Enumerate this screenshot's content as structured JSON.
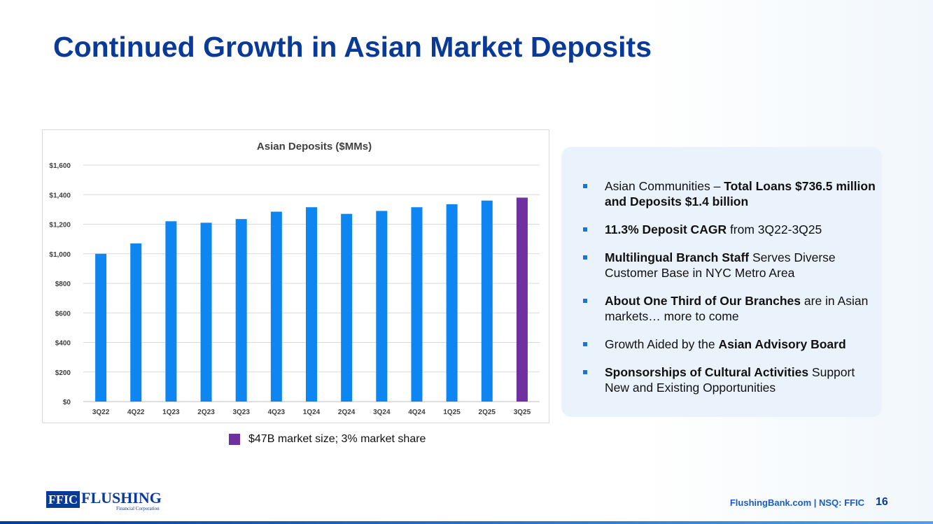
{
  "slide": {
    "title": "Continued Growth in Asian Market Deposits",
    "page_number": "16",
    "footer": "FlushingBank.com  |  NSQ: FFIC"
  },
  "logo": {
    "box_text": "FFIC",
    "name_text": "FLUSHING",
    "sub_text": "Financial Corporation"
  },
  "chart_data": {
    "type": "bar",
    "title": "Asian Deposits ($MMs)",
    "categories": [
      "3Q22",
      "4Q22",
      "1Q23",
      "2Q23",
      "3Q23",
      "4Q23",
      "1Q24",
      "2Q24",
      "3Q24",
      "4Q24",
      "1Q25",
      "2Q25",
      "3Q25"
    ],
    "values": [
      1000,
      1070,
      1220,
      1210,
      1235,
      1285,
      1315,
      1270,
      1290,
      1315,
      1335,
      1360,
      1380
    ],
    "ylim": [
      0,
      1600
    ],
    "yticks": [
      "$0",
      "$200",
      "$400",
      "$600",
      "$800",
      "$1,000",
      "$1,200",
      "$1,400",
      "$1,600"
    ],
    "grid": true,
    "colors": {
      "default": "#0d86f2",
      "highlight": "#7030a0"
    },
    "highlight_index": 12
  },
  "legend": {
    "label": "$47B market size; 3% market share",
    "color": "#7030a0"
  },
  "bullets": [
    [
      {
        "t": "Asian Communities – ",
        "b": false
      },
      {
        "t": "Total Loans $736.5 million and Deposits $1.4 billion",
        "b": true
      }
    ],
    [
      {
        "t": "11.3% Deposit CAGR",
        "b": true
      },
      {
        "t": " from 3Q22-3Q25",
        "b": false
      }
    ],
    [
      {
        "t": "Multilingual Branch Staff",
        "b": true
      },
      {
        "t": " Serves Diverse Customer Base in NYC Metro Area",
        "b": false
      }
    ],
    [
      {
        "t": "About One Third of Our Branches",
        "b": true
      },
      {
        "t": " are in Asian markets… more to come",
        "b": false
      }
    ],
    [
      {
        "t": "Growth Aided by the ",
        "b": false
      },
      {
        "t": "Asian Advisory Board",
        "b": true
      }
    ],
    [
      {
        "t": "Sponsorships of Cultural Activities",
        "b": true
      },
      {
        "t": " Support New and Existing Opportunities",
        "b": false
      }
    ]
  ]
}
